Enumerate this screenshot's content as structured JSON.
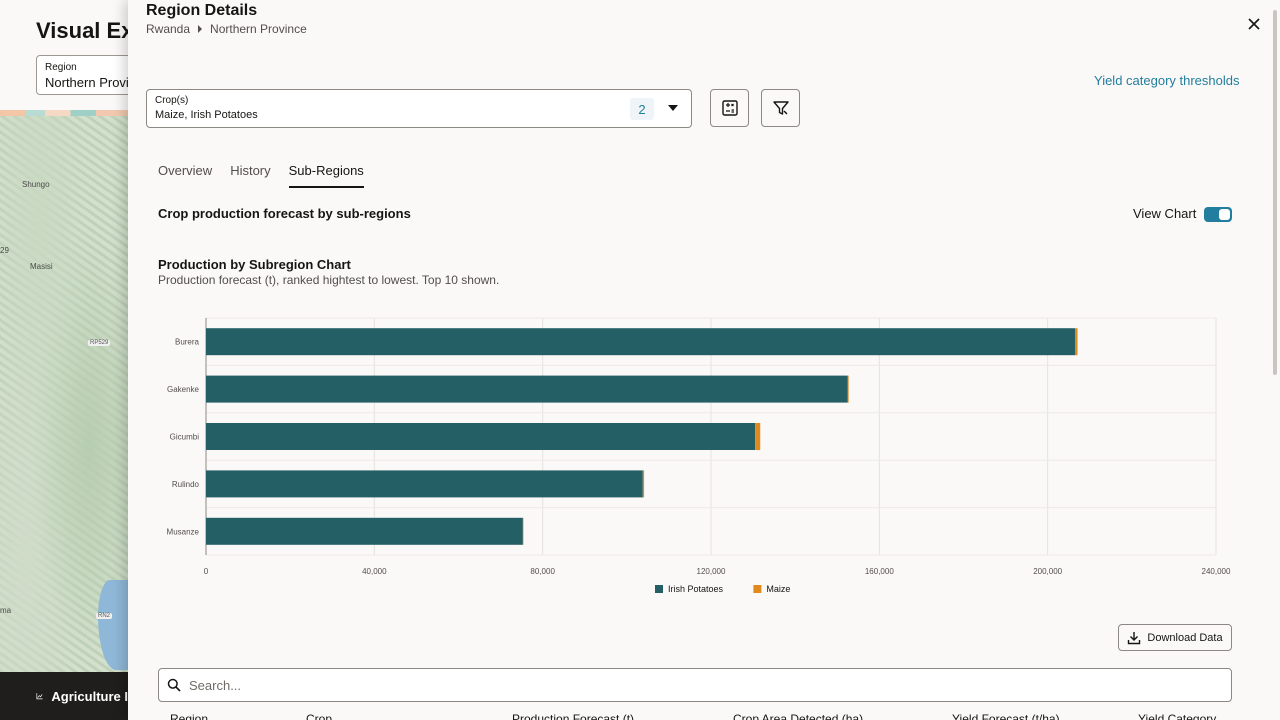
{
  "background": {
    "title": "Visual Ex",
    "region_label": "Region",
    "region_value": "Northern Provin",
    "map_labels": [
      "Shungo",
      "Masisi",
      "29",
      "ma"
    ],
    "map_roads": [
      "RP529",
      "RN2"
    ],
    "footer_label": "Agriculture I"
  },
  "drawer": {
    "title": "Region Details",
    "breadcrumb": [
      "Rwanda",
      "Northern Province"
    ],
    "yield_link": "Yield category thresholds",
    "crop_select": {
      "label": "Crop(s)",
      "value": "Maize, Irish Potatoes",
      "count": "2"
    },
    "tabs": [
      {
        "label": "Overview",
        "active": false
      },
      {
        "label": "History",
        "active": false
      },
      {
        "label": "Sub-Regions",
        "active": true
      }
    ],
    "section_title": "Crop production forecast by sub-regions",
    "view_chart_label": "View Chart",
    "view_chart_on": true,
    "download_label": "Download Data",
    "search_placeholder": "Search...",
    "table_headers": [
      "Region",
      "Crop",
      "Production Forecast (t)",
      "Crop Area Detected (ha)",
      "Yield Forecast (t/ha)",
      "Yield Category"
    ]
  },
  "colors": {
    "accent": "#227e9e",
    "potatoes": "#255f66",
    "maize": "#e08a1e"
  },
  "chart_data": {
    "type": "bar",
    "orientation": "horizontal",
    "stacked": true,
    "title": "Production by Subregion Chart",
    "subtitle": "Production forecast (t), ranked hightest to lowest. Top 10 shown.",
    "categories": [
      "Burera",
      "Gakenke",
      "Gicumbi",
      "Rulindo",
      "Musanze"
    ],
    "series": [
      {
        "name": "Irish Potatoes",
        "values": [
          206500,
          152500,
          130500,
          103800,
          75300
        ]
      },
      {
        "name": "Maize",
        "values": [
          600,
          200,
          1200,
          300,
          100
        ]
      }
    ],
    "xlim": [
      0,
      240000
    ],
    "xticks": [
      "0",
      "40,000",
      "80,000",
      "120,000",
      "160,000",
      "200,000",
      "240,000"
    ],
    "grid": true,
    "legend": "bottom-center"
  }
}
